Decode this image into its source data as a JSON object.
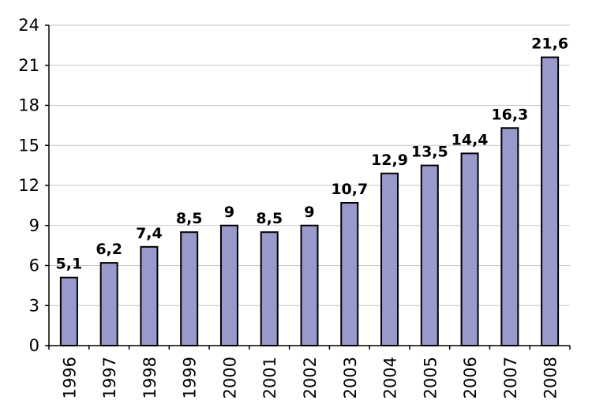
{
  "chart_data": {
    "type": "bar",
    "categories": [
      "1996",
      "1997",
      "1998",
      "1999",
      "2000",
      "2001",
      "2002",
      "2003",
      "2004",
      "2005",
      "2006",
      "2007",
      "2008"
    ],
    "values": [
      5.1,
      6.2,
      7.4,
      8.5,
      9,
      8.5,
      9,
      10.7,
      12.9,
      13.5,
      14.4,
      16.3,
      21.6
    ],
    "value_labels": [
      "5,1",
      "6,2",
      "7,4",
      "8,5",
      "9",
      "8,5",
      "9",
      "10,7",
      "12,9",
      "13,5",
      "14,4",
      "16,3",
      "21,6"
    ],
    "y_ticks": [
      0,
      3,
      6,
      9,
      12,
      15,
      18,
      21,
      24
    ],
    "ylim": [
      0,
      24
    ],
    "title": "",
    "xlabel": "",
    "ylabel": "",
    "grid": true,
    "legend": "none",
    "bar_color": "#9999cc"
  }
}
